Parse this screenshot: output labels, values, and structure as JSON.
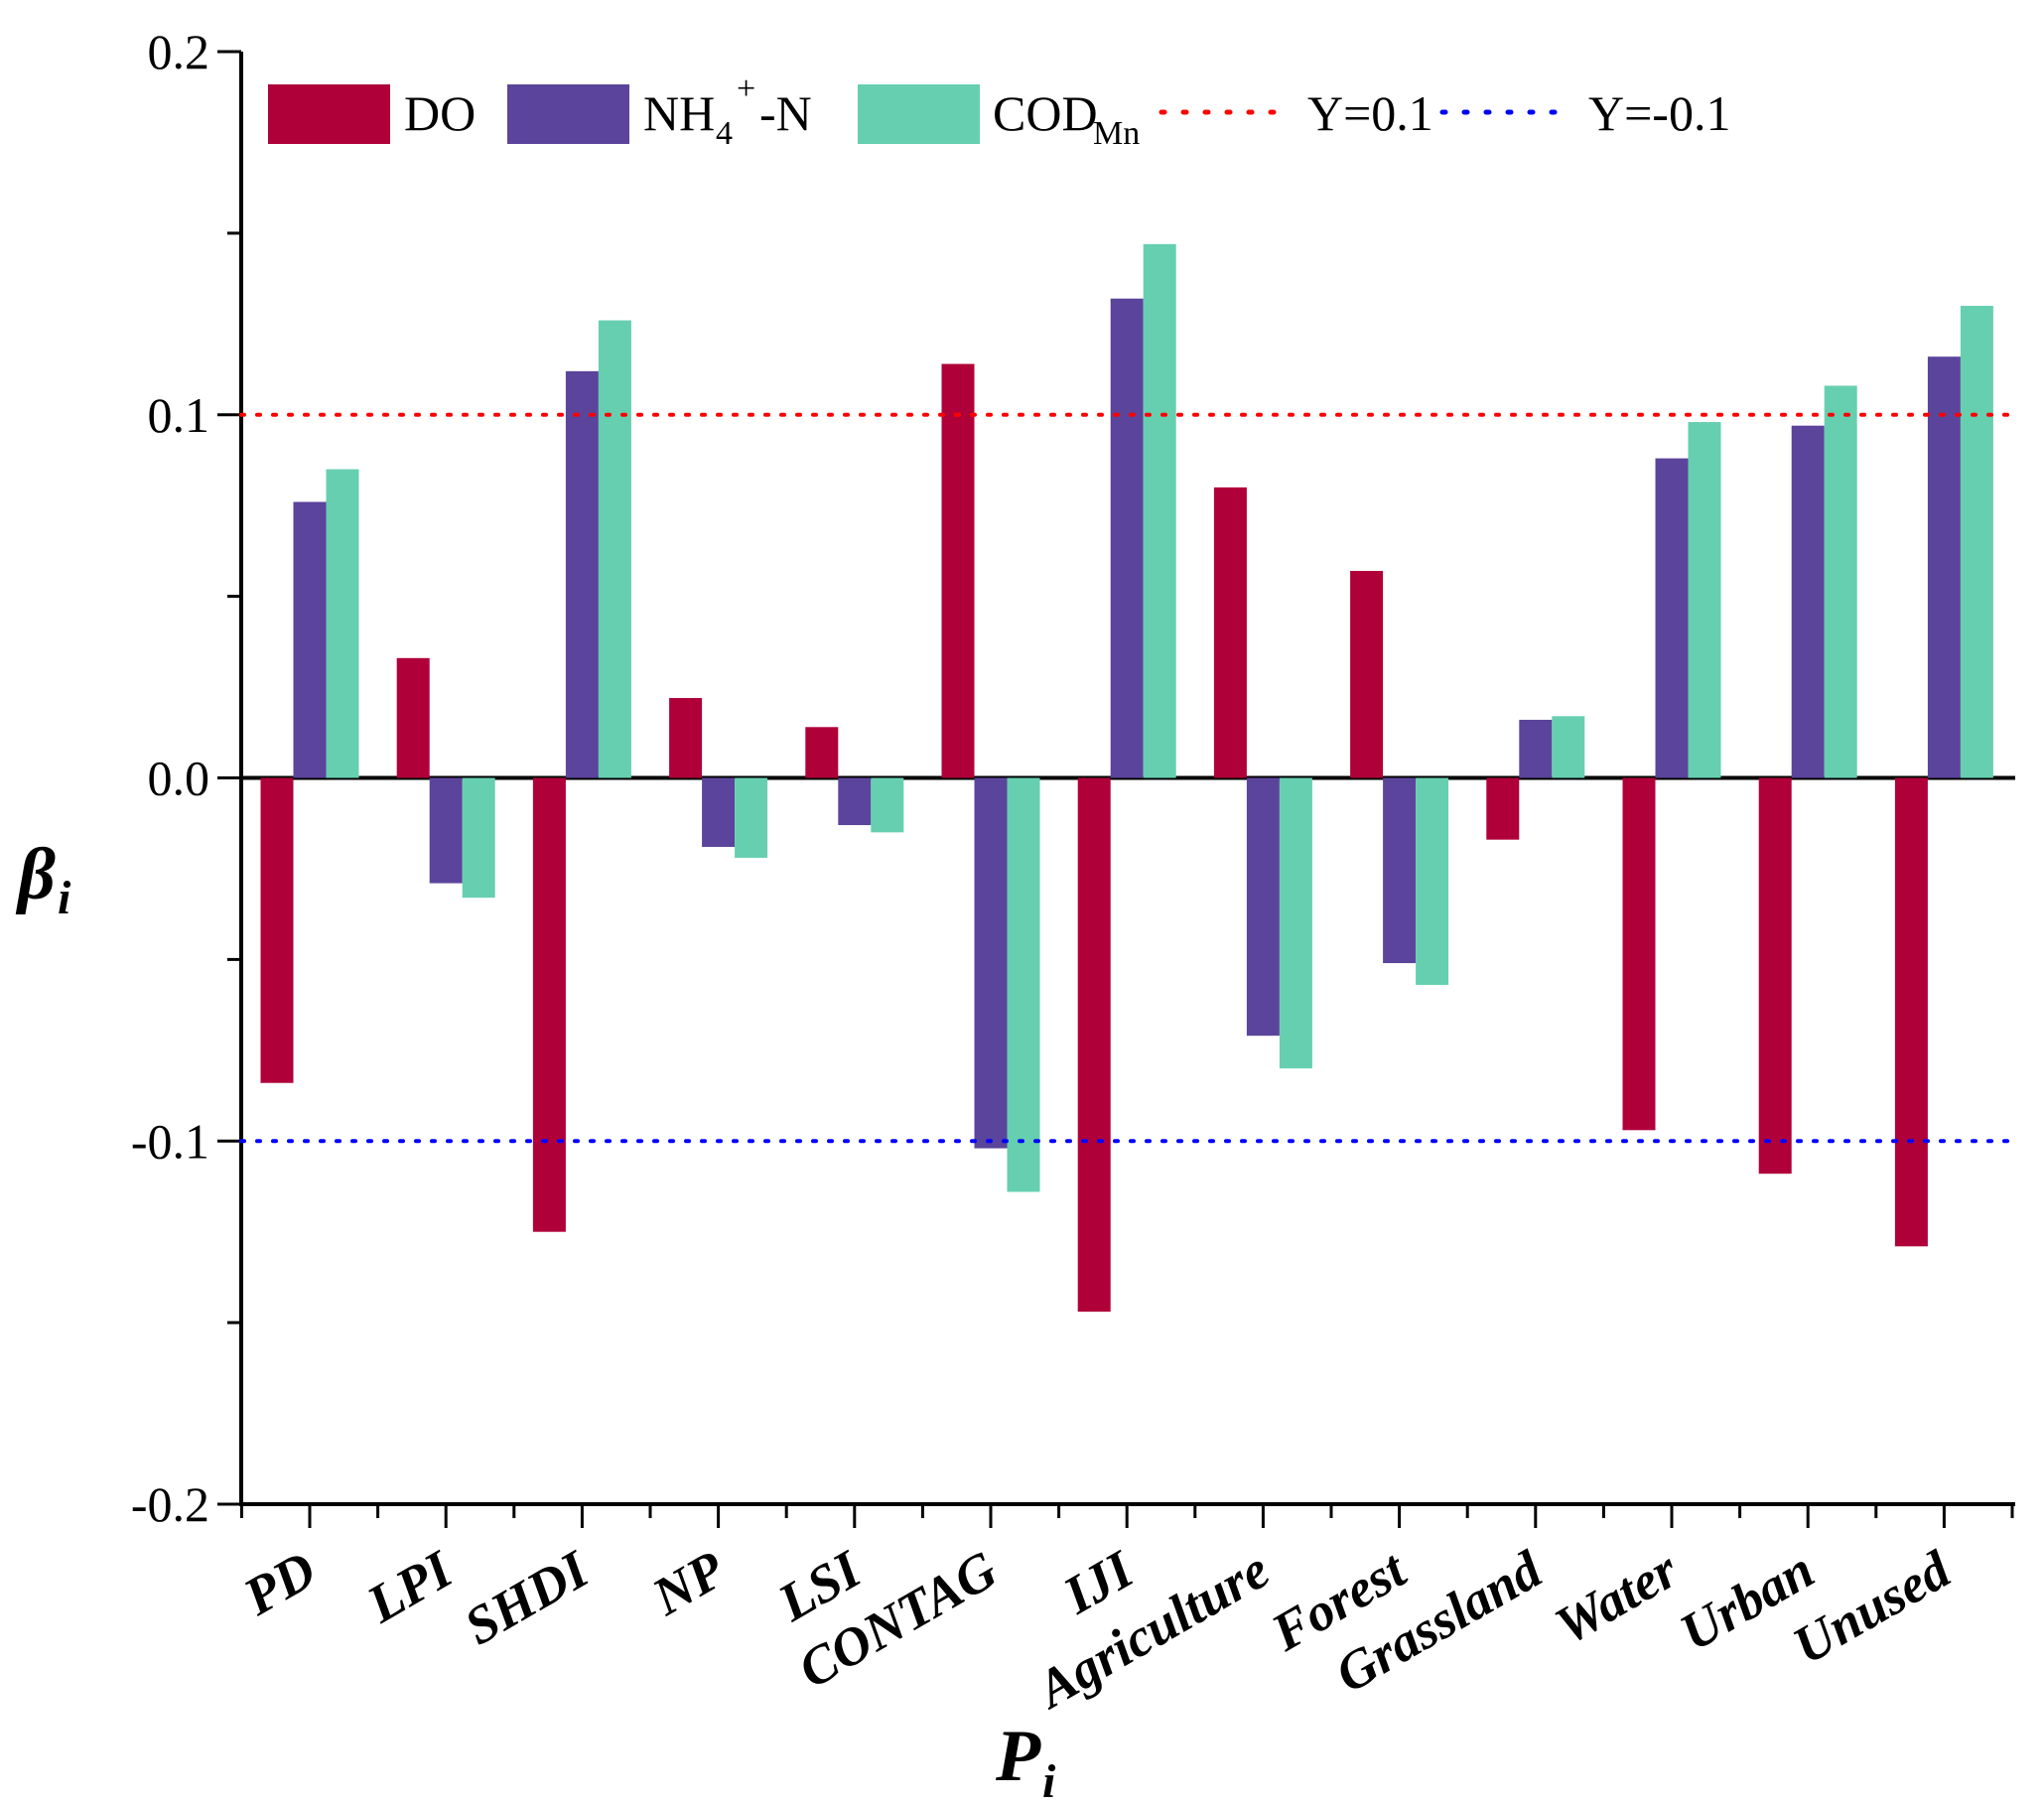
{
  "chart_data": {
    "type": "bar",
    "ylabel": "β",
    "ylabel_subscript": "i",
    "xlabel": "P",
    "xlabel_subscript": "i",
    "ylim": [
      -0.2,
      0.2
    ],
    "yticks": [
      "0.2",
      "0.1",
      "0.0",
      "-0.1",
      "-0.2"
    ],
    "ytick_values": [
      0.2,
      0.1,
      0.0,
      -0.1,
      -0.2
    ],
    "categories": [
      "PD",
      "LPI",
      "SHDI",
      "NP",
      "LSI",
      "CONTAG",
      "IJI",
      "Agriculture",
      "Forest",
      "Grassland",
      "Water",
      "Urban",
      "Unused"
    ],
    "series": [
      {
        "name": "DO",
        "color": "#B0003A",
        "values": [
          -0.084,
          0.033,
          -0.125,
          0.022,
          0.014,
          0.114,
          -0.147,
          0.08,
          0.057,
          -0.017,
          -0.097,
          -0.109,
          -0.129
        ]
      },
      {
        "name": "NH4+-N",
        "color": "#5B449B",
        "values": [
          0.076,
          -0.029,
          0.112,
          -0.019,
          -0.013,
          -0.102,
          0.132,
          -0.071,
          -0.051,
          0.016,
          0.088,
          0.097,
          0.116
        ]
      },
      {
        "name": "CODMn",
        "color": "#66CFB0",
        "values": [
          0.085,
          -0.033,
          0.126,
          -0.022,
          -0.015,
          -0.114,
          0.147,
          -0.08,
          -0.057,
          0.017,
          0.098,
          0.108,
          0.13
        ]
      }
    ],
    "reference_lines": [
      {
        "label": "Y=0.1",
        "value": 0.1,
        "color": "#FF0000"
      },
      {
        "label": "Y=-0.1",
        "value": -0.1,
        "color": "#0000FF"
      }
    ],
    "legend": {
      "position": "top",
      "entries": [
        {
          "label": "DO",
          "sub": "",
          "sup": "",
          "suffix": ""
        },
        {
          "label": "NH",
          "sub": "4",
          "sup": "+",
          "suffix": "-N"
        },
        {
          "label": "COD",
          "sub": "Mn",
          "sup": "",
          "suffix": ""
        },
        {
          "label": "Y=0.1",
          "sub": "",
          "sup": "",
          "suffix": ""
        },
        {
          "label": "Y=-0.1",
          "sub": "",
          "sup": "",
          "suffix": ""
        }
      ]
    },
    "grid": false
  }
}
